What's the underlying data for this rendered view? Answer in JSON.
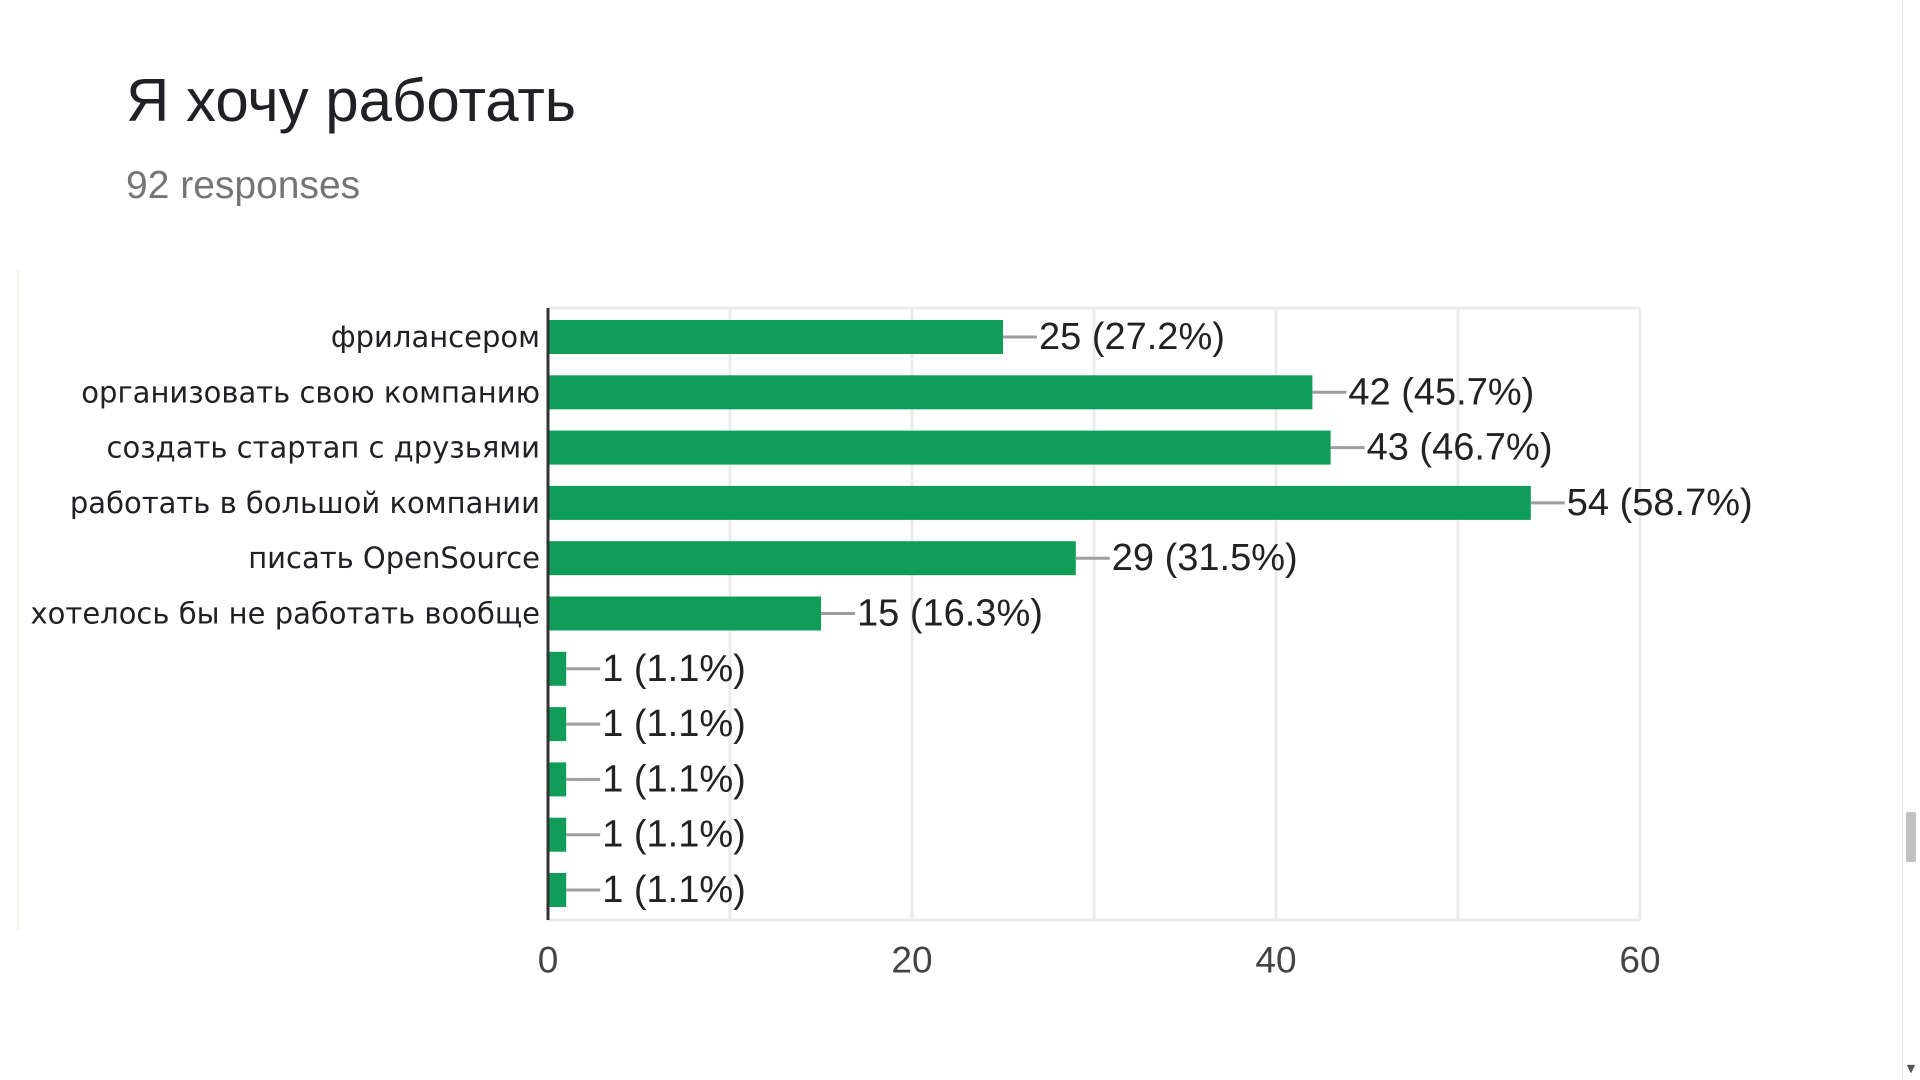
{
  "header": {
    "title": "Я хочу работать",
    "subtitle": "92 responses"
  },
  "colors": {
    "bar": "#109d58",
    "leader_line": "#9e9e9e",
    "grid": "#ebebeb",
    "axis": "#333333"
  },
  "chart_data": {
    "type": "bar",
    "orientation": "horizontal",
    "title": "Я хочу работать",
    "subtitle": "92 responses",
    "categories": [
      "фрилансером",
      "организовать свою компанию",
      "создать стартап с друзьями",
      "работать в большой компании",
      "писать OpenSource",
      "хотелось бы не работать вообще",
      "",
      "",
      "",
      "",
      ""
    ],
    "values": [
      25,
      42,
      43,
      54,
      29,
      15,
      1,
      1,
      1,
      1,
      1
    ],
    "data_labels": [
      "25 (27.2%)",
      "42 (45.7%)",
      "43 (46.7%)",
      "54 (58.7%)",
      "29 (31.5%)",
      "15 (16.3%)",
      "1 (1.1%)",
      "1 (1.1%)",
      "1 (1.1%)",
      "1 (1.1%)",
      "1 (1.1%)"
    ],
    "xlim": [
      0,
      60
    ],
    "xticks": [
      0,
      20,
      40,
      60
    ],
    "xtick_labels": [
      "0",
      "20",
      "40",
      "60"
    ],
    "grid": true,
    "legend": "none"
  }
}
